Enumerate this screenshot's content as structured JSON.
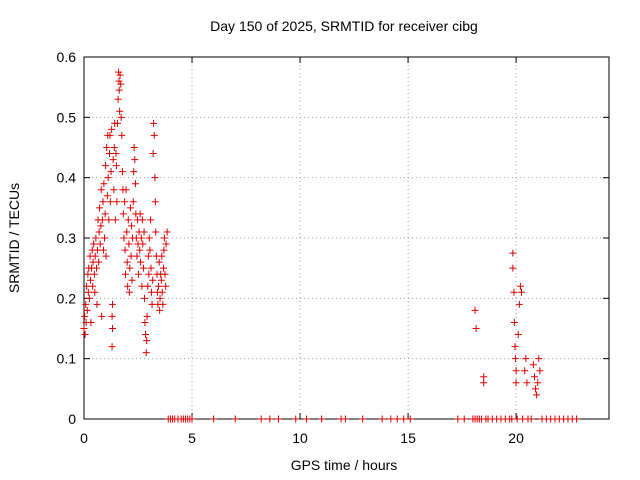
{
  "chart_data": {
    "type": "scatter",
    "title": "Day 150 of 2025, SRMTID for receiver cibg",
    "xlabel": "GPS time / hours",
    "ylabel": "SRMTID / TECUs",
    "xlim": [
      0,
      24.3
    ],
    "ylim": [
      0,
      0.6
    ],
    "xticks": [
      0,
      5,
      10,
      15,
      20
    ],
    "xtick_labels": [
      "0",
      "5",
      "10",
      "15",
      "20"
    ],
    "yticks": [
      0,
      0.1,
      0.2,
      0.3,
      0.4,
      0.5,
      0.6
    ],
    "ytick_labels": [
      "0",
      "0.1",
      "0.2",
      "0.3",
      "0.4",
      "0.5",
      "0.6"
    ],
    "grid": true,
    "marker": "+",
    "color": "#dd0000",
    "series": [
      {
        "name": "SRMTID",
        "points": [
          [
            0.0,
            0.15
          ],
          [
            0.03,
            0.17
          ],
          [
            0.05,
            0.14
          ],
          [
            0.08,
            0.19
          ],
          [
            0.1,
            0.16
          ],
          [
            0.12,
            0.22
          ],
          [
            0.15,
            0.18
          ],
          [
            0.18,
            0.24
          ],
          [
            0.2,
            0.21
          ],
          [
            0.22,
            0.25
          ],
          [
            0.25,
            0.2
          ],
          [
            0.28,
            0.27
          ],
          [
            0.3,
            0.23
          ],
          [
            0.32,
            0.16
          ],
          [
            0.35,
            0.25
          ],
          [
            0.38,
            0.28
          ],
          [
            0.4,
            0.22
          ],
          [
            0.42,
            0.26
          ],
          [
            0.45,
            0.29
          ],
          [
            0.48,
            0.24
          ],
          [
            0.5,
            0.21
          ],
          [
            0.52,
            0.27
          ],
          [
            0.55,
            0.3
          ],
          [
            0.58,
            0.25
          ],
          [
            0.6,
            0.19
          ],
          [
            0.62,
            0.28
          ],
          [
            0.65,
            0.33
          ],
          [
            0.68,
            0.26
          ],
          [
            0.7,
            0.31
          ],
          [
            0.72,
            0.35
          ],
          [
            0.75,
            0.29
          ],
          [
            0.78,
            0.32
          ],
          [
            0.8,
            0.38
          ],
          [
            0.82,
            0.17
          ],
          [
            0.85,
            0.33
          ],
          [
            0.88,
            0.36
          ],
          [
            0.9,
            0.28
          ],
          [
            0.92,
            0.39
          ],
          [
            0.95,
            0.3
          ],
          [
            0.98,
            0.34
          ],
          [
            1.0,
            0.42
          ],
          [
            1.02,
            0.27
          ],
          [
            1.05,
            0.45
          ],
          [
            1.08,
            0.37
          ],
          [
            1.1,
            0.47
          ],
          [
            1.12,
            0.4
          ],
          [
            1.15,
            0.33
          ],
          [
            1.18,
            0.44
          ],
          [
            1.2,
            0.47
          ],
          [
            1.22,
            0.36
          ],
          [
            1.25,
            0.41
          ],
          [
            1.28,
            0.48
          ],
          [
            1.3,
            0.12
          ],
          [
            1.3,
            0.17
          ],
          [
            1.32,
            0.15
          ],
          [
            1.32,
            0.19
          ],
          [
            1.35,
            0.43
          ],
          [
            1.38,
            0.38
          ],
          [
            1.4,
            0.45
          ],
          [
            1.42,
            0.49
          ],
          [
            1.45,
            0.33
          ],
          [
            1.48,
            0.44
          ],
          [
            1.5,
            0.42
          ],
          [
            1.52,
            0.36
          ],
          [
            1.55,
            0.49
          ],
          [
            1.58,
            0.53
          ],
          [
            1.6,
            0.575
          ],
          [
            1.62,
            0.56
          ],
          [
            1.63,
            0.545
          ],
          [
            1.65,
            0.51
          ],
          [
            1.67,
            0.57
          ],
          [
            1.7,
            0.555
          ],
          [
            1.72,
            0.5
          ],
          [
            1.75,
            0.47
          ],
          [
            1.78,
            0.41
          ],
          [
            1.8,
            0.38
          ],
          [
            1.82,
            0.34
          ],
          [
            1.85,
            0.3
          ],
          [
            1.88,
            0.36
          ],
          [
            1.9,
            0.28
          ],
          [
            1.92,
            0.24
          ],
          [
            1.95,
            0.38
          ],
          [
            1.98,
            0.31
          ],
          [
            2.0,
            0.26
          ],
          [
            2.02,
            0.22
          ],
          [
            2.05,
            0.33
          ],
          [
            2.08,
            0.29
          ],
          [
            2.1,
            0.21
          ],
          [
            2.12,
            0.25
          ],
          [
            2.15,
            0.35
          ],
          [
            2.18,
            0.27
          ],
          [
            2.2,
            0.32
          ],
          [
            2.22,
            0.23
          ],
          [
            2.25,
            0.3
          ],
          [
            2.28,
            0.36
          ],
          [
            2.3,
            0.41
          ],
          [
            2.32,
            0.45
          ],
          [
            2.35,
            0.43
          ],
          [
            2.38,
            0.39
          ],
          [
            2.4,
            0.34
          ],
          [
            2.42,
            0.3
          ],
          [
            2.45,
            0.27
          ],
          [
            2.48,
            0.33
          ],
          [
            2.5,
            0.29
          ],
          [
            2.52,
            0.24
          ],
          [
            2.55,
            0.31
          ],
          [
            2.58,
            0.28
          ],
          [
            2.6,
            0.34
          ],
          [
            2.62,
            0.26
          ],
          [
            2.65,
            0.3
          ],
          [
            2.68,
            0.22
          ],
          [
            2.7,
            0.33
          ],
          [
            2.72,
            0.29
          ],
          [
            2.75,
            0.25
          ],
          [
            2.78,
            0.31
          ],
          [
            2.8,
            0.2
          ],
          [
            2.82,
            0.16
          ],
          [
            2.85,
            0.14
          ],
          [
            2.88,
            0.11
          ],
          [
            2.9,
            0.13
          ],
          [
            2.92,
            0.17
          ],
          [
            2.95,
            0.22
          ],
          [
            2.98,
            0.27
          ],
          [
            3.0,
            0.24
          ],
          [
            3.02,
            0.3
          ],
          [
            3.05,
            0.28
          ],
          [
            3.08,
            0.33
          ],
          [
            3.1,
            0.25
          ],
          [
            3.12,
            0.21
          ],
          [
            3.15,
            0.19
          ],
          [
            3.18,
            0.23
          ],
          [
            3.2,
            0.44
          ],
          [
            3.22,
            0.49
          ],
          [
            3.25,
            0.47
          ],
          [
            3.28,
            0.4
          ],
          [
            3.3,
            0.36
          ],
          [
            3.32,
            0.31
          ],
          [
            3.35,
            0.27
          ],
          [
            3.38,
            0.24
          ],
          [
            3.4,
            0.21
          ],
          [
            3.42,
            0.19
          ],
          [
            3.45,
            0.22
          ],
          [
            3.48,
            0.26
          ],
          [
            3.5,
            0.18
          ],
          [
            3.52,
            0.2
          ],
          [
            3.55,
            0.24
          ],
          [
            3.58,
            0.23
          ],
          [
            3.6,
            0.27
          ],
          [
            3.62,
            0.21
          ],
          [
            3.65,
            0.19
          ],
          [
            3.68,
            0.25
          ],
          [
            3.7,
            0.28
          ],
          [
            3.72,
            0.3
          ],
          [
            3.75,
            0.24
          ],
          [
            3.78,
            0.22
          ],
          [
            3.8,
            0.29
          ],
          [
            3.85,
            0.31
          ],
          [
            3.9,
            0.0
          ],
          [
            4.0,
            0.0
          ],
          [
            4.1,
            0.0
          ],
          [
            4.2,
            0.0
          ],
          [
            4.35,
            0.0
          ],
          [
            4.5,
            0.0
          ],
          [
            4.6,
            0.0
          ],
          [
            4.7,
            0.0
          ],
          [
            4.8,
            0.0
          ],
          [
            4.9,
            0.0
          ],
          [
            5.0,
            0.0
          ],
          [
            6.0,
            0.0
          ],
          [
            7.0,
            0.0
          ],
          [
            8.2,
            0.0
          ],
          [
            8.6,
            0.0
          ],
          [
            9.0,
            0.0
          ],
          [
            9.8,
            0.0
          ],
          [
            10.3,
            0.0
          ],
          [
            11.0,
            0.0
          ],
          [
            11.9,
            0.0
          ],
          [
            12.1,
            0.0
          ],
          [
            12.9,
            0.0
          ],
          [
            13.8,
            0.0
          ],
          [
            14.2,
            0.0
          ],
          [
            14.5,
            0.0
          ],
          [
            14.8,
            0.0
          ],
          [
            15.1,
            0.0
          ],
          [
            17.3,
            0.0
          ],
          [
            17.6,
            0.0
          ],
          [
            18.0,
            0.0
          ],
          [
            18.1,
            0.0
          ],
          [
            18.1,
            0.18
          ],
          [
            18.15,
            0.15
          ],
          [
            18.2,
            0.0
          ],
          [
            18.3,
            0.0
          ],
          [
            18.4,
            0.0
          ],
          [
            18.5,
            0.07
          ],
          [
            18.5,
            0.06
          ],
          [
            18.6,
            0.0
          ],
          [
            18.7,
            0.0
          ],
          [
            18.9,
            0.0
          ],
          [
            19.1,
            0.0
          ],
          [
            19.3,
            0.0
          ],
          [
            19.5,
            0.0
          ],
          [
            19.7,
            0.0
          ],
          [
            19.8,
            0.0
          ],
          [
            19.85,
            0.275
          ],
          [
            19.85,
            0.25
          ],
          [
            19.9,
            0.21
          ],
          [
            19.92,
            0.16
          ],
          [
            19.95,
            0.12
          ],
          [
            19.97,
            0.1
          ],
          [
            20.0,
            0.08
          ],
          [
            20.0,
            0.06
          ],
          [
            20.05,
            0.0
          ],
          [
            20.1,
            0.14
          ],
          [
            20.15,
            0.19
          ],
          [
            20.2,
            0.22
          ],
          [
            20.25,
            0.21
          ],
          [
            20.3,
            0.0
          ],
          [
            20.4,
            0.08
          ],
          [
            20.45,
            0.1
          ],
          [
            20.5,
            0.06
          ],
          [
            20.55,
            0.0
          ],
          [
            20.7,
            0.0
          ],
          [
            20.8,
            0.09
          ],
          [
            20.85,
            0.07
          ],
          [
            20.9,
            0.05
          ],
          [
            20.95,
            0.04
          ],
          [
            21.0,
            0.06
          ],
          [
            21.05,
            0.1
          ],
          [
            21.1,
            0.08
          ],
          [
            21.2,
            0.0
          ],
          [
            21.4,
            0.0
          ],
          [
            21.6,
            0.0
          ],
          [
            21.8,
            0.0
          ],
          [
            22.0,
            0.0
          ],
          [
            22.2,
            0.0
          ],
          [
            22.4,
            0.0
          ],
          [
            22.6,
            0.0
          ],
          [
            22.8,
            0.0
          ]
        ]
      }
    ]
  }
}
